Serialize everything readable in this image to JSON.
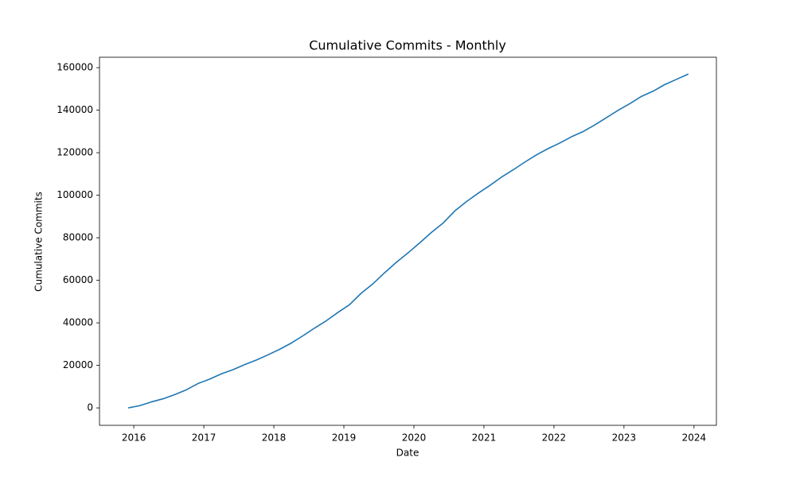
{
  "chart_data": {
    "type": "line",
    "title": "Cumulative Commits - Monthly",
    "x_label": "Date",
    "y_label": "Cumulative Commits",
    "x": [
      2015.92,
      2016.08,
      2016.25,
      2016.42,
      2016.58,
      2016.75,
      2016.92,
      2017.08,
      2017.25,
      2017.42,
      2017.58,
      2017.75,
      2017.92,
      2018.08,
      2018.25,
      2018.42,
      2018.58,
      2018.75,
      2018.92,
      2019.08,
      2019.25,
      2019.42,
      2019.58,
      2019.75,
      2019.92,
      2020.08,
      2020.25,
      2020.42,
      2020.58,
      2020.75,
      2020.92,
      2021.08,
      2021.25,
      2021.42,
      2021.58,
      2021.75,
      2021.92,
      2022.08,
      2022.25,
      2022.42,
      2022.58,
      2022.75,
      2022.92,
      2023.08,
      2023.25,
      2023.42,
      2023.58,
      2023.75,
      2023.92
    ],
    "series": [
      {
        "color": "#1f77b4",
        "values": [
          0,
          1000,
          2800,
          4300,
          6200,
          8500,
          11500,
          13500,
          16000,
          18000,
          20300,
          22500,
          25000,
          27500,
          30500,
          34000,
          37500,
          41000,
          45000,
          48500,
          54000,
          58500,
          63500,
          68500,
          73000,
          77500,
          82500,
          87000,
          92500,
          97000,
          101000,
          104500,
          108500,
          112000,
          115500,
          119000,
          122000,
          124500,
          127500,
          130000,
          133000,
          136500,
          140000,
          143000,
          146500,
          149000,
          152000,
          154500,
          157000
        ]
      }
    ],
    "xlim": [
      2015.51,
      2024.32
    ],
    "xticks": [
      2016,
      2017,
      2018,
      2019,
      2020,
      2021,
      2022,
      2023,
      2024
    ],
    "ylim": [
      -8200,
      164900
    ],
    "yticks": [
      0,
      20000,
      40000,
      60000,
      80000,
      100000,
      120000,
      140000,
      160000
    ]
  }
}
